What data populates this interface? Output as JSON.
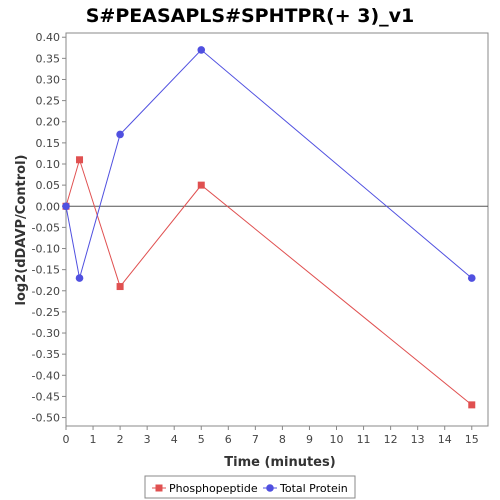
{
  "chart_data": {
    "type": "line",
    "title": "S#PEASAPLS#SPHTPR(+ 3)_v1",
    "xlabel": "Time (minutes)",
    "ylabel": "log2(dDAVP/Control)",
    "xlim": [
      0,
      15.6
    ],
    "ylim": [
      -0.52,
      0.41
    ],
    "x_ticks": [
      "0",
      "1",
      "2",
      "3",
      "4",
      "5",
      "6",
      "7",
      "8",
      "9",
      "10",
      "11",
      "12",
      "13",
      "14",
      "15"
    ],
    "y_ticks": [
      "0.40",
      "0.35",
      "0.30",
      "0.25",
      "0.20",
      "0.15",
      "0.10",
      "0.05",
      "0.00",
      "-0.05",
      "-0.10",
      "-0.15",
      "-0.20",
      "-0.25",
      "-0.30",
      "-0.35",
      "-0.40",
      "-0.45",
      "-0.50"
    ],
    "grid": false,
    "legend_position": "bottom",
    "series": [
      {
        "name": "Phosphopeptide",
        "color": "#e05050",
        "marker": "square",
        "x": [
          0,
          0.5,
          2,
          5,
          15
        ],
        "y": [
          0.0,
          0.11,
          -0.19,
          0.05,
          -0.47
        ]
      },
      {
        "name": "Total Protein",
        "color": "#5050e0",
        "marker": "circle",
        "x": [
          0,
          0.5,
          2,
          5,
          15
        ],
        "y": [
          0.0,
          -0.17,
          0.17,
          0.37,
          -0.17
        ]
      }
    ]
  }
}
